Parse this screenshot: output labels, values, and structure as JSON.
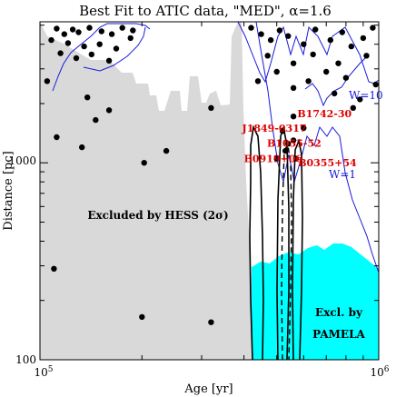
{
  "chart_data": {
    "type": "scatter",
    "title": "Best Fit to ATIC data, \"MED\", α=1.6",
    "xlabel": "Age [yr]",
    "ylabel": "Distance [pc]",
    "x_scale": "log",
    "y_scale": "log",
    "xlim": [
      100000,
      1000000
    ],
    "ylim": [
      100,
      5200
    ],
    "x_ticks": [
      {
        "value": 100000,
        "label": "10",
        "sup": "5"
      },
      {
        "value": 1000000,
        "label": "10",
        "sup": "6"
      }
    ],
    "y_ticks": [
      {
        "value": 100,
        "label": "100"
      },
      {
        "value": 1000,
        "label": "1000"
      }
    ],
    "colors": {
      "hess_region": "#d9d9d9",
      "pamela_region": "#00ffff",
      "w_contours": "#1a1adb",
      "pulsar_labels": "#e00000",
      "points": "#000000",
      "fit_contours": "#000000"
    },
    "region_labels": {
      "hess": "Excluded by HESS (2σ)",
      "pamela_line1": "Excl. by",
      "pamela_line2": "PAMELA"
    },
    "w_labels": {
      "w10": "W=10",
      "w1": "W=1"
    },
    "pulsars": [
      {
        "name": "J1849-0317",
        "age": 520000,
        "dist": 1450
      },
      {
        "name": "B1742-30",
        "age": 560000,
        "dist": 1720
      },
      {
        "name": "B1055-52",
        "age": 540000,
        "dist": 1250
      },
      {
        "name": "B0919+06",
        "age": 500000,
        "dist": 1050
      },
      {
        "name": "B0355+54",
        "age": 570000,
        "dist": 1050
      }
    ],
    "pulsar_labels": [
      {
        "text": "J1849-0317",
        "age": 395000,
        "dist": 1500
      },
      {
        "text": "B1742-30",
        "age": 575000,
        "dist": 1780
      },
      {
        "text": "B1055-52",
        "age": 468000,
        "dist": 1260
      },
      {
        "text": "B0919+06",
        "age": 400000,
        "dist": 1050
      },
      {
        "text": "B0355+54",
        "age": 578000,
        "dist": 1000
      }
    ],
    "points": [
      [
        112000,
        4800
      ],
      [
        118000,
        4500
      ],
      [
        125000,
        4750
      ],
      [
        130000,
        4600
      ],
      [
        140000,
        4850
      ],
      [
        152000,
        4650
      ],
      [
        163000,
        4500
      ],
      [
        175000,
        4850
      ],
      [
        188000,
        4700
      ],
      [
        108000,
        4200
      ],
      [
        121000,
        4050
      ],
      [
        135000,
        3900
      ],
      [
        150000,
        4000
      ],
      [
        168000,
        3800
      ],
      [
        185000,
        4300
      ],
      [
        115000,
        3600
      ],
      [
        128000,
        3400
      ],
      [
        142000,
        3550
      ],
      [
        160000,
        3300
      ],
      [
        105000,
        2600
      ],
      [
        138000,
        2150
      ],
      [
        160000,
        1850
      ],
      [
        146000,
        1650
      ],
      [
        112000,
        1350
      ],
      [
        236000,
        1150
      ],
      [
        203000,
        1000
      ],
      [
        133000,
        1200
      ],
      [
        420000,
        4850
      ],
      [
        450000,
        4500
      ],
      [
        480000,
        4200
      ],
      [
        510000,
        4700
      ],
      [
        540000,
        4400
      ],
      [
        600000,
        4000
      ],
      [
        650000,
        4750
      ],
      [
        720000,
        4200
      ],
      [
        780000,
        4600
      ],
      [
        830000,
        3900
      ],
      [
        900000,
        4300
      ],
      [
        960000,
        4850
      ],
      [
        470000,
        3500
      ],
      [
        560000,
        3200
      ],
      [
        640000,
        3550
      ],
      [
        700000,
        2900
      ],
      [
        760000,
        3200
      ],
      [
        920000,
        3500
      ],
      [
        440000,
        2600
      ],
      [
        500000,
        2900
      ],
      [
        560000,
        2400
      ],
      [
        620000,
        2600
      ],
      [
        740000,
        2250
      ],
      [
        800000,
        2700
      ],
      [
        980000,
        2500
      ],
      [
        320000,
        1900
      ],
      [
        840000,
        1900
      ],
      [
        880000,
        2100
      ],
      [
        560000,
        1300
      ],
      [
        600000,
        1500
      ],
      [
        530000,
        1150
      ],
      [
        110000,
        290
      ],
      [
        200000,
        165
      ],
      [
        320000,
        155
      ]
    ]
  }
}
